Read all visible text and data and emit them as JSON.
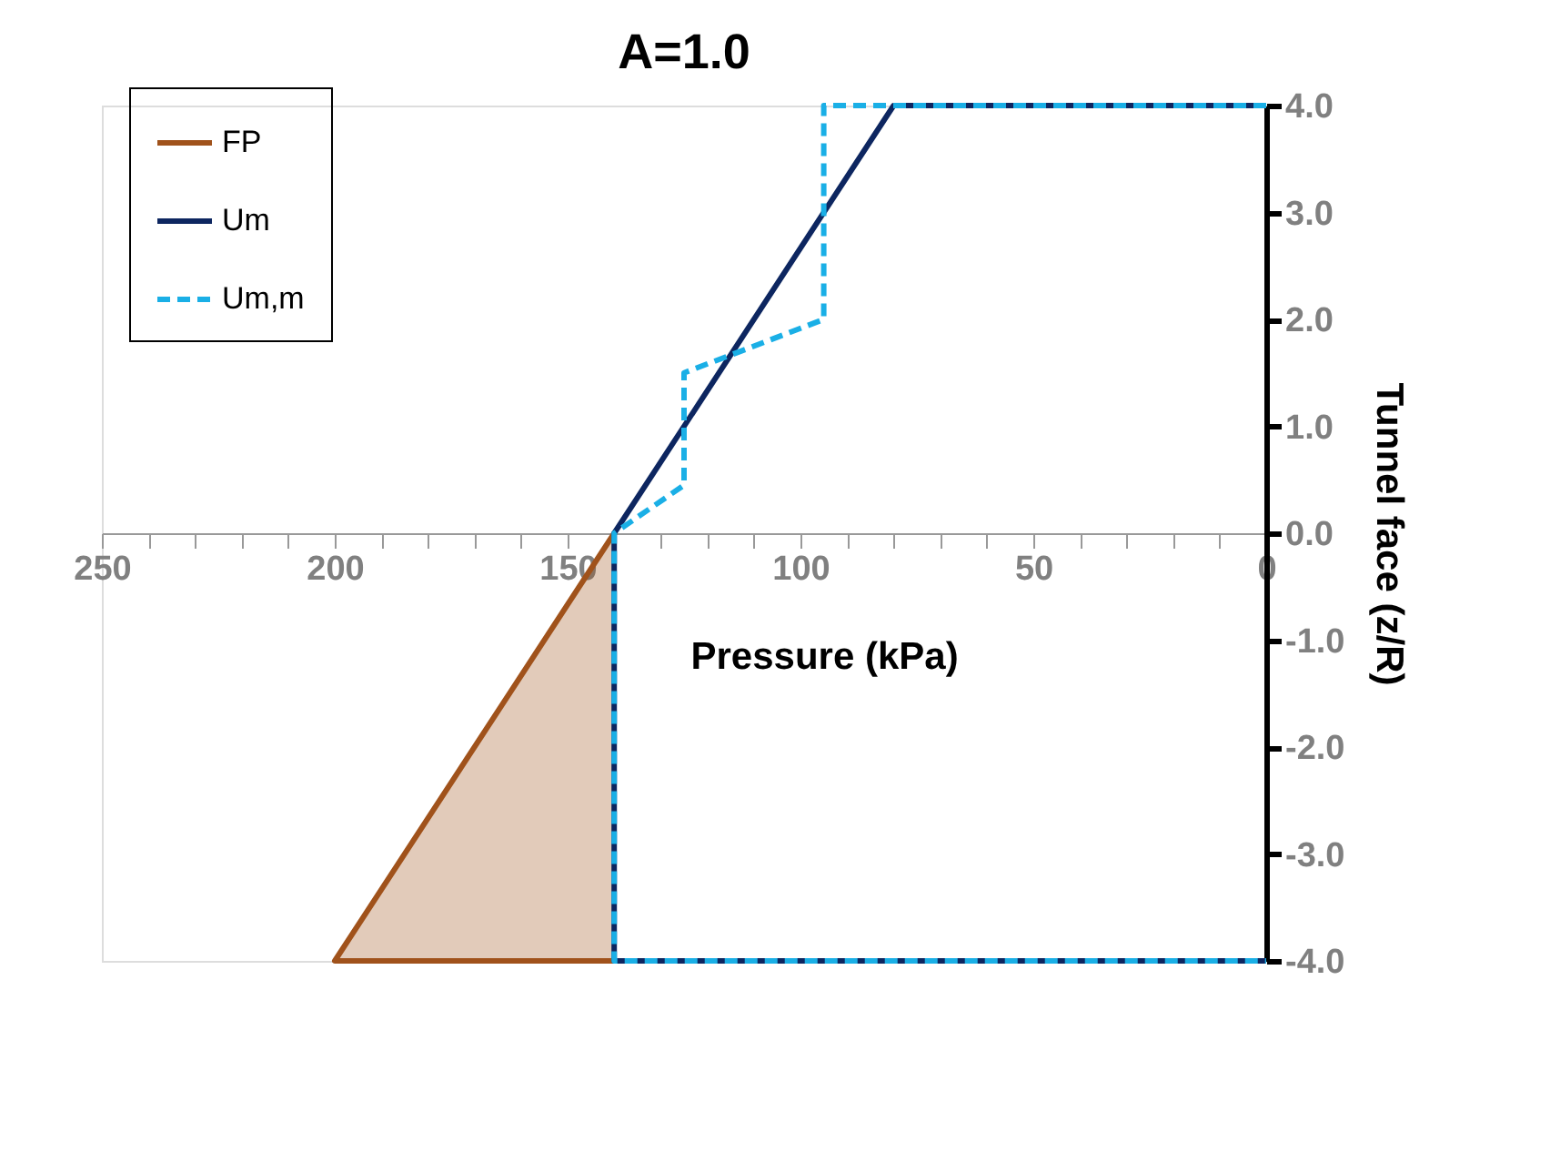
{
  "chart_data": {
    "type": "line",
    "title": "A=1.0",
    "xlabel": "Pressure (kPa)",
    "ylabel": "Tunnel face (z/R)",
    "xlim": [
      250,
      0
    ],
    "ylim": [
      -4,
      4
    ],
    "xticks": [
      250,
      {
        "value": 240,
        "label": null
      },
      {
        "value": 230,
        "label": null
      },
      {
        "value": 220,
        "label": null
      },
      {
        "value": 210,
        "label": null
      },
      200,
      {
        "value": 190,
        "label": null
      },
      {
        "value": 180,
        "label": null
      },
      {
        "value": 170,
        "label": null
      },
      {
        "value": 160,
        "label": null
      },
      150,
      {
        "value": 140,
        "label": null
      },
      {
        "value": 130,
        "label": null
      },
      {
        "value": 120,
        "label": null
      },
      {
        "value": 110,
        "label": null
      },
      100,
      {
        "value": 90,
        "label": null
      },
      {
        "value": 80,
        "label": null
      },
      {
        "value": 70,
        "label": null
      },
      {
        "value": 60,
        "label": null
      },
      50,
      {
        "value": 40,
        "label": null
      },
      {
        "value": 30,
        "label": null
      },
      {
        "value": 20,
        "label": null
      },
      {
        "value": 10,
        "label": null
      },
      0
    ],
    "yticks": [
      {
        "value": -4,
        "label": "-4.0"
      },
      {
        "value": -3,
        "label": "-3.0"
      },
      {
        "value": -2,
        "label": "-2.0"
      },
      {
        "value": -1,
        "label": "-1.0"
      },
      {
        "value": 0,
        "label": "0.0"
      },
      {
        "value": 1,
        "label": "1.0"
      },
      {
        "value": 2,
        "label": "2.0"
      },
      {
        "value": 3,
        "label": "3.0"
      },
      {
        "value": 4,
        "label": "4.0"
      }
    ],
    "grid": false,
    "legend": "top left",
    "marker": "none",
    "series": [
      {
        "name": "FP",
        "type": "area",
        "color": "#a0521b",
        "line_style": "solid",
        "x": [
          140,
          200,
          140
        ],
        "values": [
          0,
          -4,
          -4
        ]
      },
      {
        "name": "Um",
        "color": "#0d2660",
        "line_style": "solid",
        "x": [
          0,
          80,
          140,
          140,
          0
        ],
        "values": [
          4,
          4,
          0,
          -4,
          -4
        ]
      },
      {
        "name": "Um,m",
        "color": "#1aafe6",
        "line_style": "dashed",
        "x": [
          0,
          95,
          95,
          125,
          125,
          140,
          140,
          0
        ],
        "values": [
          4,
          4,
          2,
          1.5,
          0.45,
          0,
          -4,
          -4
        ]
      }
    ]
  }
}
